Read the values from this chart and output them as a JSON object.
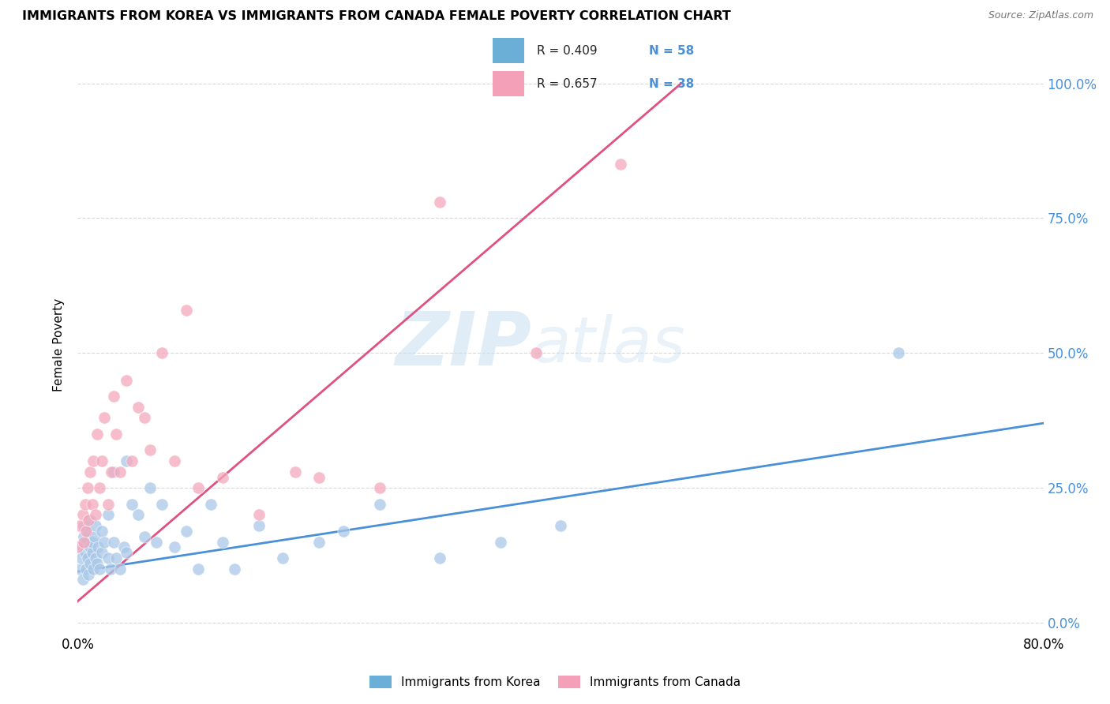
{
  "title": "IMMIGRANTS FROM KOREA VS IMMIGRANTS FROM CANADA FEMALE POVERTY CORRELATION CHART",
  "source": "Source: ZipAtlas.com",
  "ylabel_label": "Female Poverty",
  "xlim": [
    0.0,
    0.8
  ],
  "ylim": [
    -0.02,
    1.05
  ],
  "korea_color": "#a8c8e8",
  "canada_color": "#f4a8bc",
  "korea_line_color": "#4a90d9",
  "canada_line_color": "#e05080",
  "watermark_zip": "ZIP",
  "watermark_atlas": "atlas",
  "legend_r1": "R = 0.409",
  "legend_n1": "N = 58",
  "legend_r2": "R = 0.657",
  "legend_n2": "N = 38",
  "legend_color1": "#6baed6",
  "legend_color2": "#f4a0b8",
  "korea_scatter_x": [
    0.0,
    0.002,
    0.003,
    0.004,
    0.005,
    0.005,
    0.006,
    0.007,
    0.007,
    0.008,
    0.008,
    0.009,
    0.01,
    0.01,
    0.01,
    0.012,
    0.012,
    0.013,
    0.014,
    0.015,
    0.015,
    0.016,
    0.017,
    0.018,
    0.02,
    0.02,
    0.022,
    0.025,
    0.025,
    0.027,
    0.03,
    0.03,
    0.032,
    0.035,
    0.038,
    0.04,
    0.04,
    0.045,
    0.05,
    0.055,
    0.06,
    0.065,
    0.07,
    0.08,
    0.09,
    0.1,
    0.11,
    0.12,
    0.13,
    0.15,
    0.17,
    0.2,
    0.22,
    0.25,
    0.3,
    0.35,
    0.4,
    0.68
  ],
  "korea_scatter_y": [
    0.14,
    0.1,
    0.12,
    0.08,
    0.16,
    0.18,
    0.13,
    0.1,
    0.15,
    0.12,
    0.17,
    0.09,
    0.11,
    0.14,
    0.19,
    0.13,
    0.15,
    0.1,
    0.16,
    0.12,
    0.18,
    0.11,
    0.14,
    0.1,
    0.13,
    0.17,
    0.15,
    0.12,
    0.2,
    0.1,
    0.28,
    0.15,
    0.12,
    0.1,
    0.14,
    0.3,
    0.13,
    0.22,
    0.2,
    0.16,
    0.25,
    0.15,
    0.22,
    0.14,
    0.17,
    0.1,
    0.22,
    0.15,
    0.1,
    0.18,
    0.12,
    0.15,
    0.17,
    0.22,
    0.12,
    0.15,
    0.18,
    0.5
  ],
  "canada_scatter_x": [
    0.0,
    0.002,
    0.004,
    0.005,
    0.006,
    0.007,
    0.008,
    0.009,
    0.01,
    0.012,
    0.013,
    0.015,
    0.016,
    0.018,
    0.02,
    0.022,
    0.025,
    0.028,
    0.03,
    0.032,
    0.035,
    0.04,
    0.045,
    0.05,
    0.055,
    0.06,
    0.07,
    0.08,
    0.09,
    0.1,
    0.12,
    0.15,
    0.18,
    0.2,
    0.25,
    0.3,
    0.38,
    0.45
  ],
  "canada_scatter_y": [
    0.14,
    0.18,
    0.2,
    0.15,
    0.22,
    0.17,
    0.25,
    0.19,
    0.28,
    0.22,
    0.3,
    0.2,
    0.35,
    0.25,
    0.3,
    0.38,
    0.22,
    0.28,
    0.42,
    0.35,
    0.28,
    0.45,
    0.3,
    0.4,
    0.38,
    0.32,
    0.5,
    0.3,
    0.58,
    0.25,
    0.27,
    0.2,
    0.28,
    0.27,
    0.25,
    0.78,
    0.5,
    0.85
  ],
  "korea_line_x": [
    0.0,
    0.8
  ],
  "korea_line_y": [
    0.095,
    0.37
  ],
  "canada_line_x": [
    0.0,
    0.5
  ],
  "canada_line_y": [
    0.04,
    1.0
  ],
  "grid_color": "#d8d8d8",
  "ytick_color": "#4a90d9"
}
